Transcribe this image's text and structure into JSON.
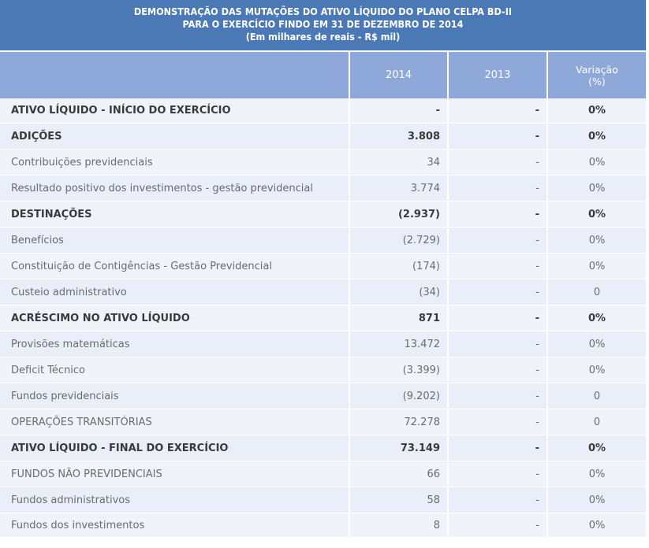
{
  "title": {
    "line1": "DEMONSTRAÇÃO DAS MUTAÇÕES DO ATIVO LÍQUIDO DO PLANO CELPA BD-II",
    "line2": "PARA O EXERCÍCIO FINDO EM 31 DE DEZEMBRO DE 2014",
    "line3": "(Em milhares de reais - R$ mil)"
  },
  "header": {
    "col_2014": "2014",
    "col_2013": "2013",
    "col_var_1": "Variação",
    "col_var_2": "(%)"
  },
  "rows": [
    {
      "label": "ATIVO LÍQUIDO - INÍCIO DO EXERCÍCIO",
      "v2014": "-",
      "v2013": "-",
      "var": "0%",
      "bold": true
    },
    {
      "label": "ADIÇÕES",
      "v2014": "3.808",
      "v2013": "-",
      "var": "0%",
      "bold": true
    },
    {
      "label": "Contribuições previdenciais",
      "v2014": "34",
      "v2013": "-",
      "var": "0%",
      "bold": false
    },
    {
      "label": "Resultado positivo dos investimentos - gestão previdencial",
      "v2014": "3.774",
      "v2013": "-",
      "var": "0%",
      "bold": false
    },
    {
      "label": "DESTINAÇÕES",
      "v2014": "(2.937)",
      "v2013": "-",
      "var": "0%",
      "bold": true
    },
    {
      "label": "Benefícios",
      "v2014": "(2.729)",
      "v2013": "-",
      "var": "0%",
      "bold": false
    },
    {
      "label": "Constituição de Contigências - Gestão Previdencial",
      "v2014": "(174)",
      "v2013": "-",
      "var": "0%",
      "bold": false
    },
    {
      "label": "Custeio administrativo",
      "v2014": "(34)",
      "v2013": "-",
      "var": "0",
      "bold": false
    },
    {
      "label": "ACRÉSCIMO NO ATIVO LÍQUIDO",
      "v2014": "871",
      "v2013": "-",
      "var": "0%",
      "bold": true
    },
    {
      "label": "Provisões matemáticas",
      "v2014": "13.472",
      "v2013": "-",
      "var": "0%",
      "bold": false
    },
    {
      "label": "Deficit Técnico",
      "v2014": "(3.399)",
      "v2013": "-",
      "var": "0%",
      "bold": false
    },
    {
      "label": "Fundos previdenciais",
      "v2014": "(9.202)",
      "v2013": "-",
      "var": "0",
      "bold": false
    },
    {
      "label": "OPERAÇÕES TRANSITÓRIAS",
      "v2014": "72.278",
      "v2013": "-",
      "var": "0",
      "bold": false
    },
    {
      "label": "ATIVO LÍQUIDO - FINAL DO EXERCÍCIO",
      "v2014": "73.149",
      "v2013": "-",
      "var": "0%",
      "bold": true
    },
    {
      "label": "FUNDOS NÃO PREVIDENCIAIS",
      "v2014": "66",
      "v2013": "-",
      "var": "0%",
      "bold": false
    },
    {
      "label": "Fundos administrativos",
      "v2014": "58",
      "v2013": "-",
      "var": "0%",
      "bold": false
    },
    {
      "label": "Fundos dos investimentos",
      "v2014": "8",
      "v2013": "-",
      "var": "0%",
      "bold": false
    }
  ],
  "colors": {
    "title_bg": "#4a79b6",
    "header_bg": "#8ea9d9",
    "row_bg": "#f0f3fa",
    "row_bg_alt": "#e9eef8"
  }
}
